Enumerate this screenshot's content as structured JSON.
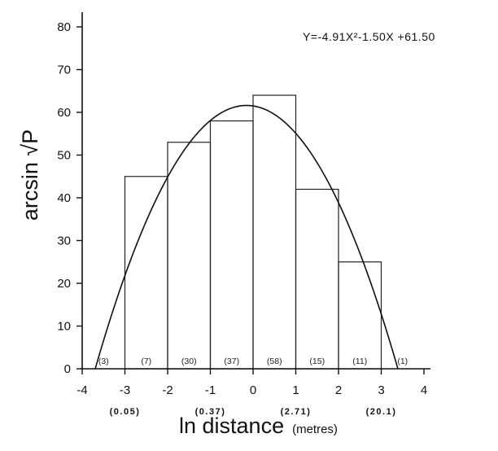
{
  "chart_data": {
    "type": "bar",
    "xlabel": "ln distance",
    "xlabel_unit": "(metres)",
    "ylabel": "arcsin √P",
    "equation": "Y=-4.91X²-1.50X +61.50",
    "xlim": [
      -4,
      4
    ],
    "ylim": [
      0,
      80
    ],
    "x_ticks": [
      -4,
      -3,
      -2,
      -1,
      0,
      1,
      2,
      3,
      4
    ],
    "y_ticks": [
      0,
      10,
      20,
      30,
      40,
      50,
      60,
      70,
      80
    ],
    "x_sublabels": [
      {
        "x": -3,
        "text": "(0.05)"
      },
      {
        "x": -1,
        "text": "(0.37)"
      },
      {
        "x": 1,
        "text": "(2.71)"
      },
      {
        "x": 3,
        "text": "(20.1)"
      }
    ],
    "bins": [
      {
        "x0": -4,
        "x1": -3,
        "value": 0,
        "count": "(3)"
      },
      {
        "x0": -3,
        "x1": -2,
        "value": 45,
        "count": "(7)"
      },
      {
        "x0": -2,
        "x1": -1,
        "value": 53,
        "count": "(30)"
      },
      {
        "x0": -1,
        "x1": 0,
        "value": 58,
        "count": "(37)"
      },
      {
        "x0": 0,
        "x1": 1,
        "value": 64,
        "count": "(58)"
      },
      {
        "x0": 1,
        "x1": 2,
        "value": 42,
        "count": "(15)"
      },
      {
        "x0": 2,
        "x1": 3,
        "value": 25,
        "count": "(11)"
      },
      {
        "x0": 3,
        "x1": 4,
        "value": 0,
        "count": "(1)"
      }
    ],
    "curve": {
      "a": -4.91,
      "b": -1.5,
      "c": 61.5
    },
    "grid": false,
    "legend": "none"
  }
}
